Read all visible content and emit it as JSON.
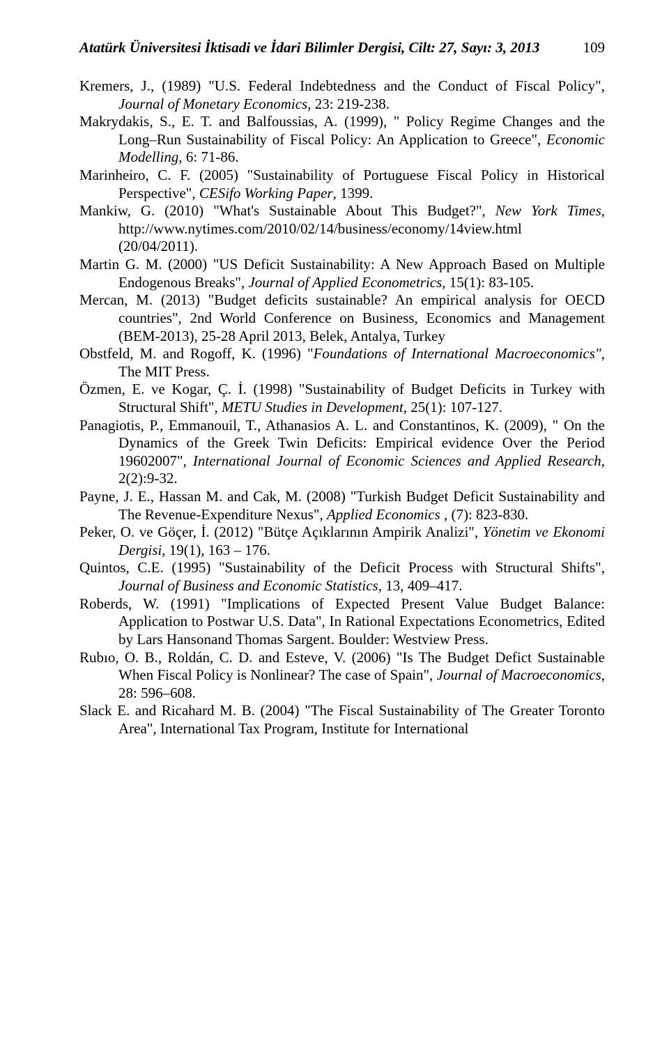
{
  "header": {
    "journal": "Atatürk Üniversitesi İktisadi ve İdari Bilimler Dergisi, Cilt: 27,  Sayı: 3,  2013",
    "page_number": "109"
  },
  "references": [
    {
      "pre": "Kremers, J., (1989) \"U.S. Federal Indebtedness and the Conduct of Fiscal Policy\", ",
      "ital": "Journal of Monetary Economics",
      "post": ", 23: 219-238."
    },
    {
      "pre": "Makrydakis, S., E. T. and Balfoussias, A. (1999), \" Policy Regime Changes and the Long–Run Sustainability of Fiscal Policy: An Application  to Greece\", ",
      "ital": "Economic Modelling",
      "post": ", 6: 71-86."
    },
    {
      "pre": "Marinheiro, C. F. (2005) \"Sustainability of Portuguese Fiscal Policy in Historical Perspective\", ",
      "ital": "CESifo Working Paper",
      "post": ", 1399."
    },
    {
      "pre": "Mankiw, G. (2010) \"What's Sustainable About This Budget?\", ",
      "ital": "New York Times",
      "post": ", http://www.nytimes.com/2010/02/14/business/economy/14view.html (20/04/2011)."
    },
    {
      "pre": "Martin G. M. (2000) \"US Deficit Sustainability: A New Approach Based on Multiple Endogenous Breaks\", ",
      "ital": "Journal of Applied Econometrics",
      "post": ", 15(1): 83-105."
    },
    {
      "pre": "Mercan, M. (2013) \"Budget deficits sustainable? An empirical analysis for OECD countries\", 2nd World Conference on Business, Economics and Management (BEM-2013), 25-28 April 2013, Belek, Antalya, Turkey",
      "ital": "",
      "post": ""
    },
    {
      "pre": "Obstfeld, M. and Rogoff, K. (1996) \"",
      "ital": "Foundations of International Macroeconomics\"",
      "post": ", The MIT Press."
    },
    {
      "pre": "Özmen, E. ve Kogar, Ç. İ. (1998) \"Sustainability of Budget Deficits in Turkey with Structural Shift\", ",
      "ital": "METU Studies in Development",
      "post": ", 25(1): 107-127."
    },
    {
      "pre": "Panagiotis, P., Emmanouil, T., Athanasios A. L. and Constantinos, K. (2009), \" On the Dynamics of the Greek Twin Deficits: Empirical evidence Over the Period 19602007\", ",
      "ital": "International Journal of Economic Sciences and Applied Research",
      "post": ", 2(2):9-32."
    },
    {
      "pre": "Payne, J. E., Hassan M. and Cak, M. (2008) \"Turkish Budget Deficit Sustainability and The Revenue-Expenditure Nexus\", ",
      "ital": "Applied Economics ",
      "post": ", (7): 823-830."
    },
    {
      "pre": "Peker, O. ve Göçer, İ. (2012) \"Bütçe Açıklarının Ampirik Analizi\", ",
      "ital": "Yönetim ve Ekonomi Dergisi",
      "post": ", 19(1), 163 – 176."
    },
    {
      "pre": "Quintos, C.E. (1995) \"Sustainability of the Deficit Process with Structural Shifts\", ",
      "ital": "Journal of Business and Economic Statistics",
      "post": ", 13, 409–417."
    },
    {
      "pre": "Roberds, W. (1991) \"Implications of Expected Present Value Budget Balance: Application to Postwar U.S. Data\", In Rational Expectations Econometrics, Edited by Lars Hansonand Thomas Sargent. Boulder: Westview Press.",
      "ital": "",
      "post": ""
    },
    {
      "pre": "Rubıo, O. B., Roldán, C. D. and Esteve, V. (2006) \"Is The Budget Defict Sustainable When Fiscal Policy is Nonlinear? The case of Spain\", ",
      "ital": "Journal of Macroeconomics",
      "post": ", 28: 596–608."
    },
    {
      "pre": "Slack E. and Ricahard M. B. (2004) \"The Fiscal Sustainability of The Greater Toronto Area\", International Tax Program, Institute for International",
      "ital": "",
      "post": ""
    }
  ]
}
